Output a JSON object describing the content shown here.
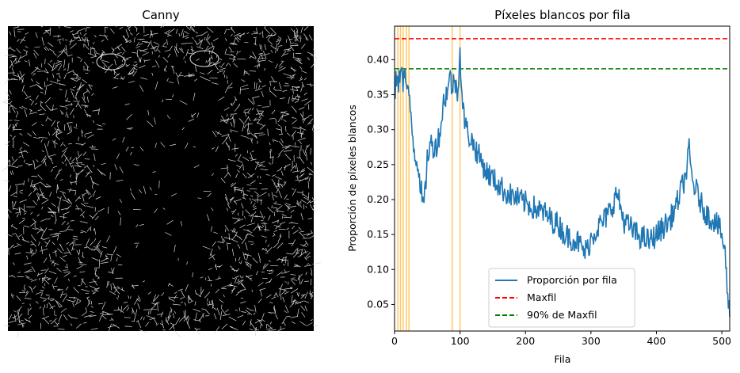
{
  "figure": {
    "left_panel": {
      "title": "Canny",
      "image_description_icon": "edge-detected-mandrill-image"
    },
    "chart_data": {
      "type": "line",
      "title": "Píxeles blancos por fila",
      "xlabel": "Fila",
      "ylabel": "Proporción de píxeles blancos",
      "xlim": [
        0,
        512
      ],
      "ylim": [
        0.012,
        0.448
      ],
      "xticks": [
        0,
        100,
        200,
        300,
        400,
        500
      ],
      "yticks": [
        0.05,
        0.1,
        0.15,
        0.2,
        0.25,
        0.3,
        0.35,
        0.4
      ],
      "ytick_labels": [
        "0.05",
        "0.10",
        "0.15",
        "0.20",
        "0.25",
        "0.30",
        "0.35",
        "0.40"
      ],
      "series": [
        {
          "name": "Proporción por fila",
          "color": "#1f77b4",
          "anchors_x": [
            0,
            3,
            6,
            10,
            13,
            16,
            20,
            23,
            27,
            30,
            33,
            36,
            40,
            43,
            46,
            50,
            55,
            60,
            65,
            70,
            75,
            80,
            85,
            88,
            92,
            96,
            100,
            104,
            110,
            120,
            130,
            140,
            150,
            160,
            170,
            180,
            190,
            200,
            210,
            220,
            230,
            240,
            250,
            260,
            270,
            280,
            290,
            295,
            300,
            310,
            320,
            330,
            340,
            345,
            350,
            360,
            370,
            380,
            390,
            400,
            410,
            420,
            430,
            440,
            445,
            450,
            455,
            460,
            470,
            480,
            490,
            500,
            505,
            508,
            510,
            512
          ],
          "anchors_y": [
            0.35,
            0.375,
            0.36,
            0.4,
            0.37,
            0.38,
            0.35,
            0.34,
            0.3,
            0.27,
            0.26,
            0.25,
            0.22,
            0.19,
            0.2,
            0.26,
            0.28,
            0.275,
            0.28,
            0.3,
            0.34,
            0.355,
            0.375,
            0.36,
            0.37,
            0.355,
            0.41,
            0.33,
            0.3,
            0.28,
            0.26,
            0.24,
            0.23,
            0.22,
            0.21,
            0.205,
            0.2,
            0.195,
            0.19,
            0.185,
            0.18,
            0.17,
            0.165,
            0.15,
            0.145,
            0.14,
            0.125,
            0.13,
            0.145,
            0.16,
            0.17,
            0.185,
            0.21,
            0.19,
            0.17,
            0.16,
            0.15,
            0.145,
            0.14,
            0.15,
            0.16,
            0.17,
            0.19,
            0.22,
            0.235,
            0.27,
            0.225,
            0.215,
            0.19,
            0.175,
            0.17,
            0.15,
            0.12,
            0.08,
            0.05,
            0.035
          ],
          "noise_amplitude": 0.018
        },
        {
          "name": "Maxfil",
          "color": "#ff0000",
          "style": "dashed",
          "y": 0.43
        },
        {
          "name": "90% de Maxfil",
          "color": "#008000",
          "style": "dashed",
          "y": 0.387
        }
      ],
      "highlighted_rows": [
        5,
        9,
        13,
        18,
        22,
        88,
        100
      ],
      "highlight_color": "#ffa500",
      "legend_position": "lower-center"
    }
  }
}
